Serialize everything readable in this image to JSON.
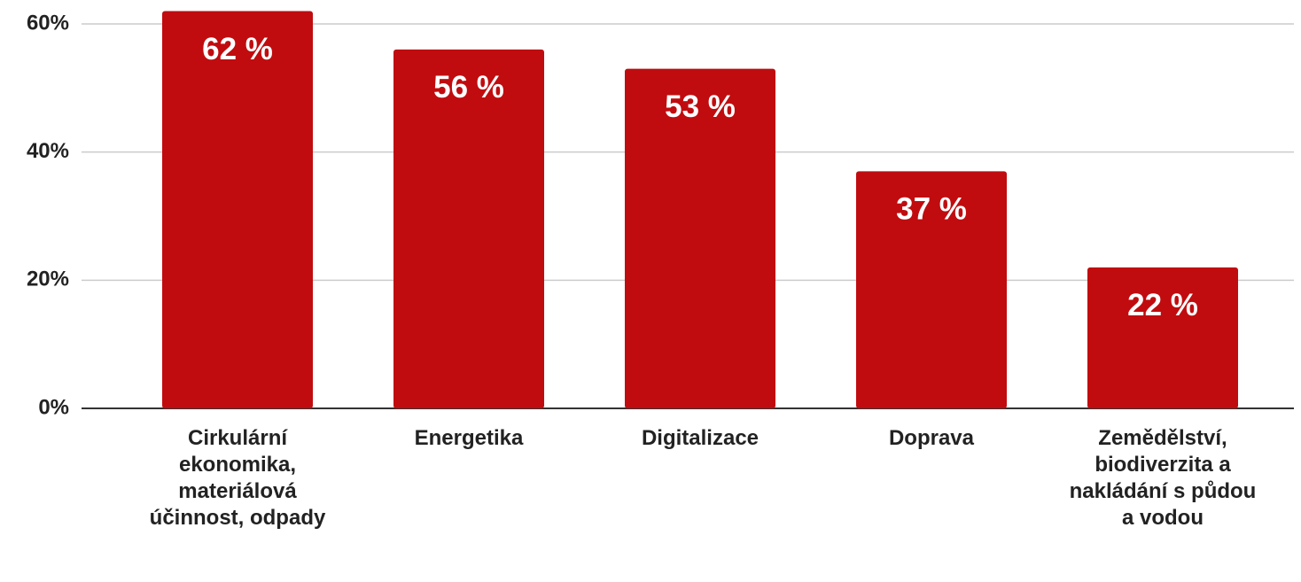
{
  "chart_data": {
    "type": "bar",
    "categories": [
      "Cirkulární ekonomika, materiálová účinnost, odpady",
      "Energetika",
      "Digitalizace",
      "Doprava",
      "Zemědělství, biodiverzita a nakládání s půdou a vodou"
    ],
    "values": [
      62,
      56,
      53,
      37,
      22
    ],
    "value_labels": [
      "62 %",
      "56 %",
      "53 %",
      "37 %",
      "22 %"
    ],
    "color": "#c00c0f",
    "ylim": [
      0,
      62
    ],
    "yticks": [
      {
        "value": 0,
        "label": "0%"
      },
      {
        "value": 20,
        "label": "20%"
      },
      {
        "value": 40,
        "label": "40%"
      },
      {
        "value": 60,
        "label": "60%"
      }
    ],
    "grid": true
  }
}
